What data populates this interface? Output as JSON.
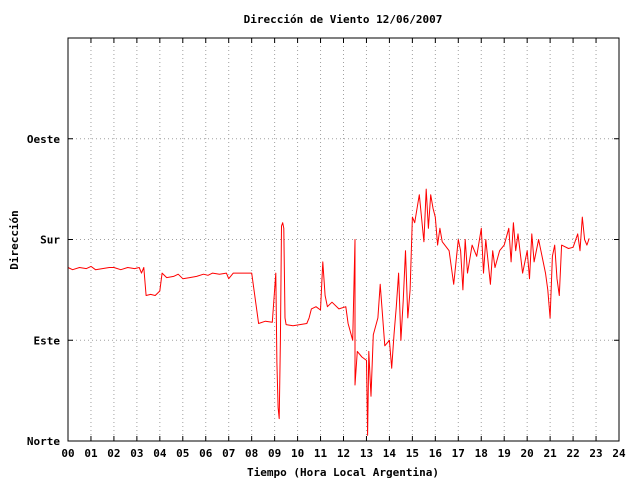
{
  "chart_data": {
    "type": "line",
    "title": "Dirección de Viento 12/06/2007",
    "xlabel": "Tiempo (Hora Local Argentina)",
    "ylabel": "Dirección",
    "xlim": [
      0,
      24
    ],
    "ylim": [
      0,
      360
    ],
    "x_ticks": [
      0,
      1,
      2,
      3,
      4,
      5,
      6,
      7,
      8,
      9,
      10,
      11,
      12,
      13,
      14,
      15,
      16,
      17,
      18,
      19,
      20,
      21,
      22,
      23,
      24
    ],
    "x_tick_labels": [
      "00",
      "01",
      "02",
      "03",
      "04",
      "05",
      "06",
      "07",
      "08",
      "09",
      "10",
      "11",
      "12",
      "13",
      "14",
      "15",
      "16",
      "17",
      "18",
      "19",
      "20",
      "21",
      "22",
      "23",
      "24"
    ],
    "y_ticks": [
      0,
      90,
      180,
      270
    ],
    "y_tick_labels": [
      "Norte",
      "Este",
      "Sur",
      "Oeste"
    ],
    "grid": true,
    "colors": {
      "series": "#ff0000",
      "grid": "#a0a0a0",
      "axes": "#000000"
    },
    "series": [
      {
        "values": [
          [
            0.0,
            155
          ],
          [
            0.2,
            153
          ],
          [
            0.5,
            155
          ],
          [
            0.8,
            154
          ],
          [
            1.0,
            156
          ],
          [
            1.2,
            153
          ],
          [
            1.5,
            154
          ],
          [
            1.8,
            155
          ],
          [
            2.0,
            155
          ],
          [
            2.3,
            153
          ],
          [
            2.6,
            155
          ],
          [
            2.9,
            154
          ],
          [
            3.1,
            155
          ],
          [
            3.2,
            150
          ],
          [
            3.3,
            155
          ],
          [
            3.4,
            130
          ],
          [
            3.6,
            131
          ],
          [
            3.8,
            130
          ],
          [
            4.0,
            134
          ],
          [
            4.1,
            150
          ],
          [
            4.3,
            146
          ],
          [
            4.6,
            147
          ],
          [
            4.8,
            149
          ],
          [
            5.0,
            145
          ],
          [
            5.3,
            146
          ],
          [
            5.6,
            147
          ],
          [
            5.9,
            149
          ],
          [
            6.1,
            148
          ],
          [
            6.3,
            150
          ],
          [
            6.6,
            149
          ],
          [
            6.9,
            150
          ],
          [
            7.0,
            145
          ],
          [
            7.2,
            150
          ],
          [
            7.6,
            150
          ],
          [
            8.0,
            150
          ],
          [
            8.1,
            135
          ],
          [
            8.2,
            120
          ],
          [
            8.3,
            105
          ],
          [
            8.6,
            107
          ],
          [
            8.9,
            106
          ],
          [
            9.05,
            150
          ],
          [
            9.1,
            70
          ],
          [
            9.15,
            30
          ],
          [
            9.2,
            20
          ],
          [
            9.25,
            90
          ],
          [
            9.3,
            192
          ],
          [
            9.35,
            195
          ],
          [
            9.4,
            190
          ],
          [
            9.45,
            110
          ],
          [
            9.5,
            104
          ],
          [
            9.8,
            103
          ],
          [
            10.1,
            104
          ],
          [
            10.4,
            105
          ],
          [
            10.5,
            110
          ],
          [
            10.6,
            118
          ],
          [
            10.8,
            120
          ],
          [
            11.0,
            117
          ],
          [
            11.1,
            160
          ],
          [
            11.2,
            130
          ],
          [
            11.3,
            120
          ],
          [
            11.5,
            124
          ],
          [
            11.8,
            118
          ],
          [
            12.1,
            120
          ],
          [
            12.2,
            105
          ],
          [
            12.4,
            90
          ],
          [
            12.5,
            180
          ],
          [
            12.5,
            50
          ],
          [
            12.6,
            80
          ],
          [
            12.8,
            75
          ],
          [
            13.0,
            72
          ],
          [
            13.05,
            5
          ],
          [
            13.1,
            80
          ],
          [
            13.2,
            40
          ],
          [
            13.3,
            95
          ],
          [
            13.5,
            110
          ],
          [
            13.6,
            140
          ],
          [
            13.8,
            85
          ],
          [
            14.0,
            90
          ],
          [
            14.1,
            65
          ],
          [
            14.2,
            95
          ],
          [
            14.3,
            120
          ],
          [
            14.4,
            150
          ],
          [
            14.5,
            90
          ],
          [
            14.6,
            125
          ],
          [
            14.7,
            170
          ],
          [
            14.8,
            110
          ],
          [
            14.9,
            135
          ],
          [
            15.0,
            200
          ],
          [
            15.1,
            195
          ],
          [
            15.3,
            220
          ],
          [
            15.5,
            178
          ],
          [
            15.6,
            225
          ],
          [
            15.7,
            190
          ],
          [
            15.8,
            220
          ],
          [
            15.9,
            208
          ],
          [
            16.0,
            200
          ],
          [
            16.1,
            175
          ],
          [
            16.2,
            190
          ],
          [
            16.3,
            178
          ],
          [
            16.6,
            170
          ],
          [
            16.8,
            140
          ],
          [
            16.9,
            160
          ],
          [
            17.0,
            180
          ],
          [
            17.1,
            170
          ],
          [
            17.2,
            135
          ],
          [
            17.3,
            180
          ],
          [
            17.4,
            150
          ],
          [
            17.6,
            175
          ],
          [
            17.8,
            165
          ],
          [
            18.0,
            190
          ],
          [
            18.1,
            150
          ],
          [
            18.2,
            180
          ],
          [
            18.4,
            140
          ],
          [
            18.5,
            170
          ],
          [
            18.6,
            155
          ],
          [
            18.8,
            170
          ],
          [
            19.0,
            175
          ],
          [
            19.2,
            190
          ],
          [
            19.3,
            160
          ],
          [
            19.4,
            195
          ],
          [
            19.5,
            170
          ],
          [
            19.6,
            185
          ],
          [
            19.8,
            150
          ],
          [
            20.0,
            170
          ],
          [
            20.1,
            145
          ],
          [
            20.2,
            185
          ],
          [
            20.3,
            160
          ],
          [
            20.5,
            180
          ],
          [
            20.6,
            170
          ],
          [
            20.8,
            150
          ],
          [
            20.9,
            135
          ],
          [
            21.0,
            110
          ],
          [
            21.1,
            165
          ],
          [
            21.2,
            175
          ],
          [
            21.3,
            145
          ],
          [
            21.4,
            130
          ],
          [
            21.5,
            175
          ],
          [
            21.8,
            172
          ],
          [
            22.0,
            173
          ],
          [
            22.2,
            185
          ],
          [
            22.3,
            170
          ],
          [
            22.4,
            200
          ],
          [
            22.5,
            180
          ],
          [
            22.6,
            175
          ],
          [
            22.7,
            181
          ]
        ]
      }
    ]
  }
}
